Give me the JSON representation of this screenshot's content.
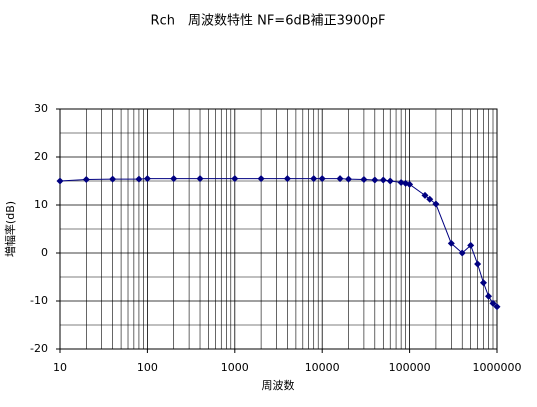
{
  "chart_data": {
    "type": "line",
    "title": "Rch　周波数特性 NF=6dB補正3900pF",
    "x_label": "周波数",
    "y_label": "増幅率(dB)",
    "x": [
      10,
      20,
      40,
      80,
      100,
      200,
      400,
      1000,
      2000,
      4000,
      8000,
      10000,
      16000,
      20000,
      30000,
      40000,
      50000,
      60000,
      80000,
      90000,
      100000,
      150000,
      170000,
      200000,
      300000,
      400000,
      500000,
      600000,
      700000,
      800000,
      900000,
      1000000
    ],
    "series": [
      {
        "name": "Rch",
        "color": "#000080",
        "values": [
          15,
          15.3,
          15.4,
          15.4,
          15.5,
          15.5,
          15.5,
          15.5,
          15.5,
          15.5,
          15.5,
          15.5,
          15.5,
          15.4,
          15.3,
          15.2,
          15.2,
          15.0,
          14.7,
          14.5,
          14.3,
          12,
          11.2,
          10.2,
          2,
          0,
          1.6,
          -2.3,
          -6.2,
          -9,
          -10.5,
          -11.2
        ]
      }
    ],
    "xscale": "log",
    "xlim": [
      10,
      1000000
    ],
    "xticks": [
      10,
      100,
      1000,
      10000,
      100000,
      1000000
    ],
    "ylim": [
      -20,
      30
    ],
    "yticks": [
      -20,
      -10,
      0,
      10,
      20,
      30
    ],
    "yminor": [
      -15,
      -5,
      5,
      15,
      25
    ],
    "grid": true
  }
}
